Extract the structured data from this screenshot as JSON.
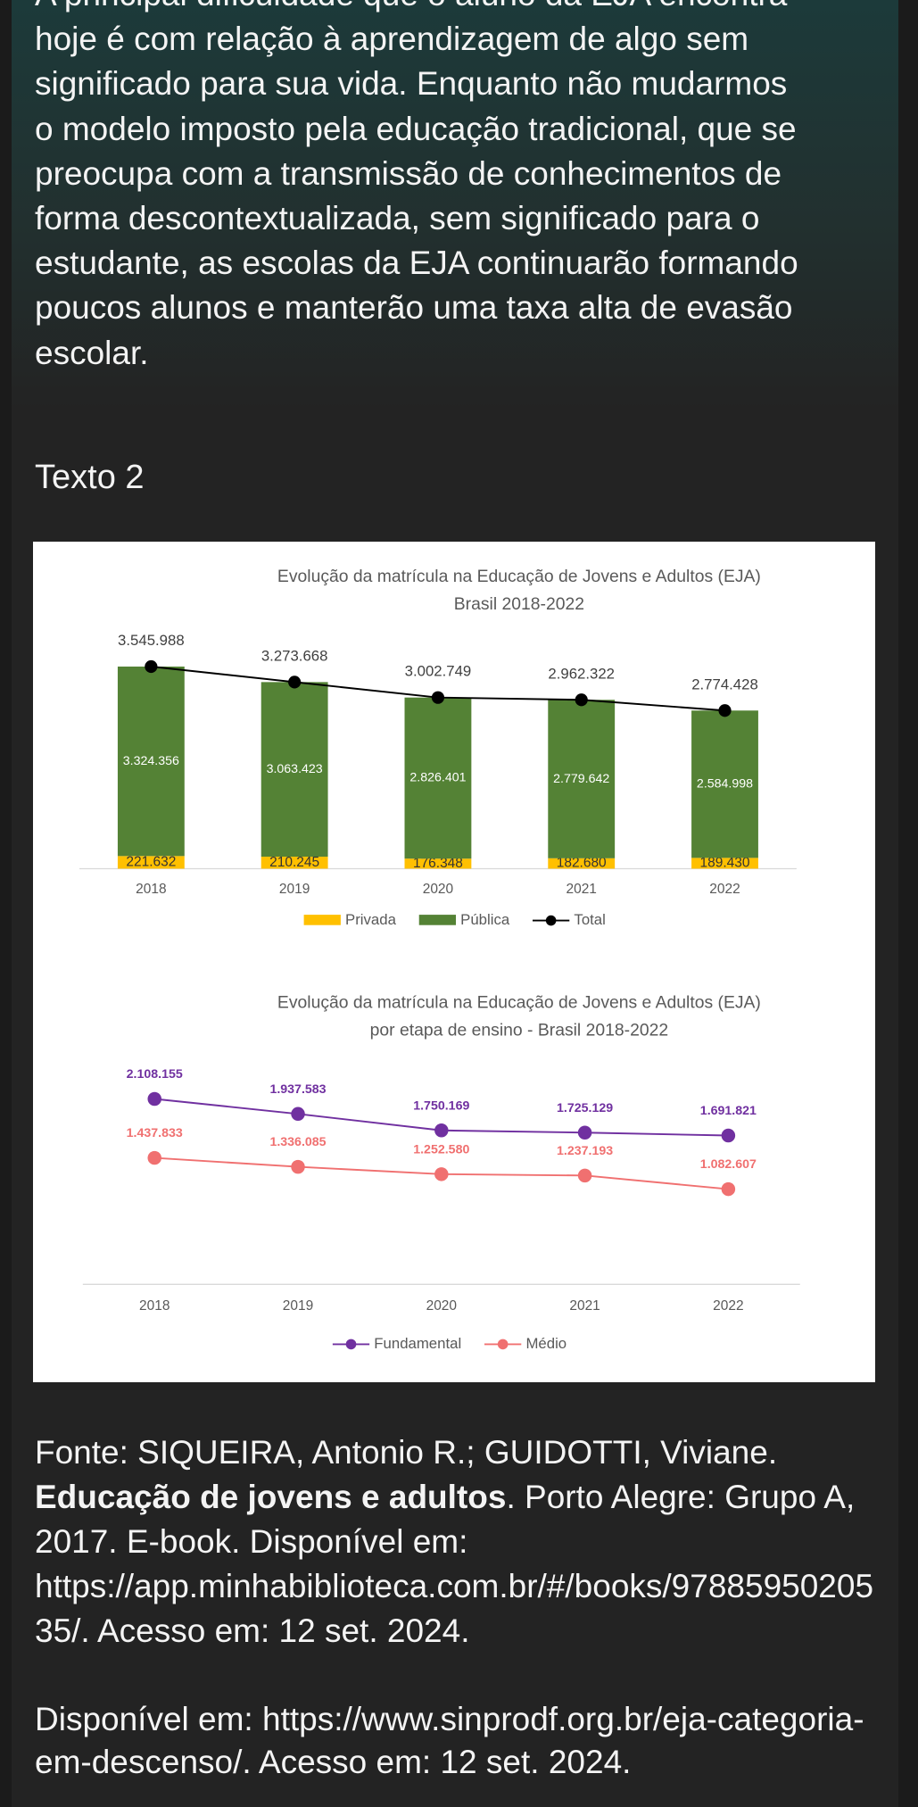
{
  "paragraph": {
    "lines": [
      "A principal dificuldade que o aluno da EJA encontra",
      "hoje é com relação à aprendizagem de algo sem",
      "significado para sua vida. Enquanto não mudarmos",
      "o modelo imposto pela educação tradicional, que se",
      "preocupa com a transmissão de conhecimentos de",
      "forma descontextualizada, sem significado para o",
      "estudante, as escolas da EJA continuarão formando",
      "poucos alunos e manterão uma taxa alta de evasão",
      "escolar."
    ]
  },
  "heading": "Texto 2",
  "charts": [
    {
      "type": "bar",
      "stacked": true,
      "legend": "bottom",
      "title": "Evolução da matrícula na Educação de Jovens e Adultos (EJA)",
      "subtitle": "Brasil 2018-2022",
      "categories": [
        "2018",
        "2019",
        "2020",
        "2021",
        "2022"
      ],
      "ylim": [
        0,
        4000000
      ],
      "series": [
        {
          "name": "Privada",
          "color": "#ffc000",
          "values": [
            221632,
            210245,
            176348,
            182680,
            189430
          ],
          "value_labels": [
            "221.632",
            "210.245",
            "176.348",
            "182.680",
            "189.430"
          ]
        },
        {
          "name": "Pública",
          "color": "#548235",
          "values": [
            3324356,
            3063423,
            2826401,
            2779642,
            2584998
          ],
          "value_labels": [
            "3.324.356",
            "3.063.423",
            "2.826.401",
            "2.779.642",
            "2.584.998"
          ]
        },
        {
          "name": "Total",
          "type": "line",
          "color": "#000000",
          "values": [
            3545988,
            3273668,
            3002749,
            2962322,
            2774428
          ],
          "value_labels": [
            "3.545.988",
            "3.273.668",
            "3.002.749",
            "2.962.322",
            "2.774.428"
          ]
        }
      ]
    },
    {
      "type": "line",
      "legend": "bottom",
      "title": "Evolução da matrícula na Educação de Jovens e Adultos (EJA)",
      "subtitle": "por etapa de ensino - Brasil 2018-2022",
      "categories": [
        "2018",
        "2019",
        "2020",
        "2021",
        "2022"
      ],
      "ylim": [
        0,
        2500000
      ],
      "series": [
        {
          "name": "Fundamental",
          "color": "#7030a0",
          "values": [
            2108155,
            1937583,
            1750169,
            1725129,
            1691821
          ],
          "value_labels": [
            "2.108.155",
            "1.937.583",
            "1.750.169",
            "1.725.129",
            "1.691.821"
          ]
        },
        {
          "name": "Médio",
          "color": "#f07070",
          "values": [
            1437833,
            1336085,
            1252580,
            1237193,
            1082607
          ],
          "value_labels": [
            "1.437.833",
            "1.336.085",
            "1.252.580",
            "1.237.193",
            "1.082.607"
          ]
        }
      ]
    }
  ],
  "source": {
    "prefix": "Fonte: SIQUEIRA, Antonio R.; GUIDOTTI, Viviane.",
    "bold": "Educação de jovens e adultos",
    "suffix": ". Porto Alegre: Grupo A, 2017. E-book. Disponível em: https://app.minhabiblioteca.com.br/#/books/9788595020535/. Acesso em: 12 set. 2024."
  },
  "availability": "Disponível em: https://www.sinprodf.org.br/eja-categoria-em-descenso/. Acesso em: 12 set. 2024."
}
